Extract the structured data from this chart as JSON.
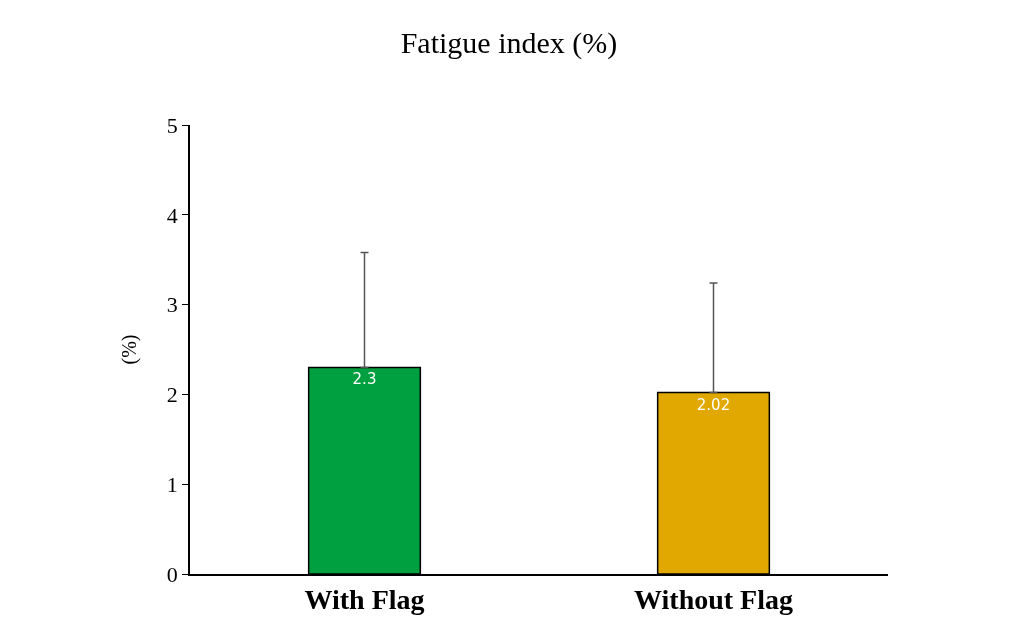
{
  "chart_data": {
    "type": "bar",
    "title": "Fatigue index (%)",
    "ylabel": "(%)",
    "categories": [
      "With Flag",
      "Without Flag"
    ],
    "values": [
      2.3,
      2.02
    ],
    "colors": [
      "#00a040",
      "#e0a800"
    ],
    "errors": [
      [
        2.3,
        3.58
      ],
      [
        2.02,
        3.24
      ]
    ],
    "data_labels": true,
    "ylim": [
      0,
      5
    ],
    "yticks": [
      0,
      1,
      2,
      3,
      4,
      5
    ],
    "legend": false
  }
}
